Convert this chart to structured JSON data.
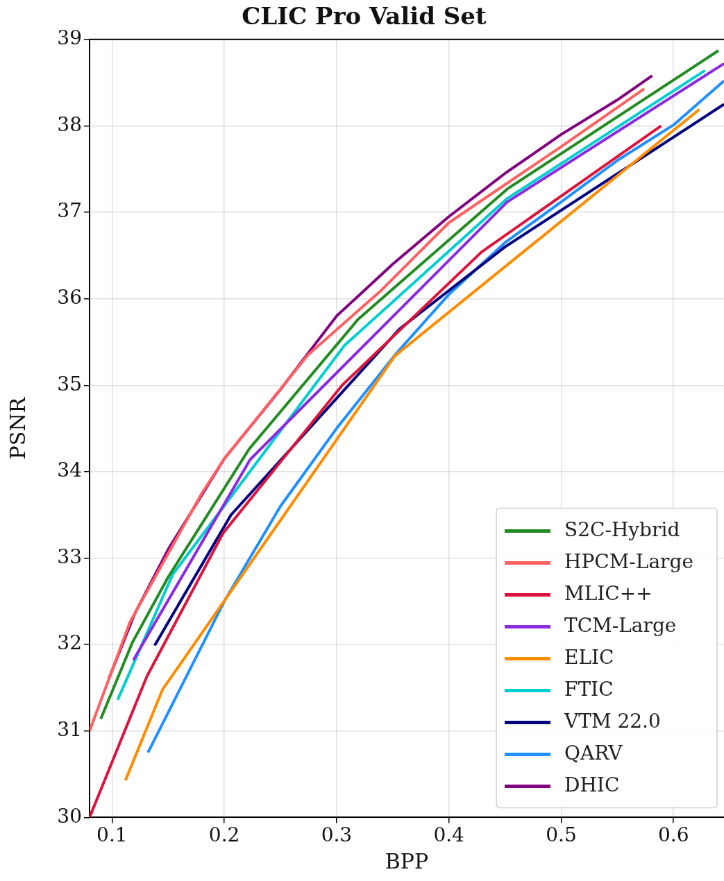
{
  "chart_data": {
    "type": "line",
    "title": "CLIC Pro Valid Set",
    "xlabel": "BPP",
    "ylabel": "PSNR",
    "xlim": [
      0.08,
      0.645
    ],
    "ylim": [
      30,
      39
    ],
    "xticks": [
      {
        "value": 0.1,
        "label": "0.1"
      },
      {
        "value": 0.2,
        "label": "0.2"
      },
      {
        "value": 0.3,
        "label": "0.3"
      },
      {
        "value": 0.4,
        "label": "0.4"
      },
      {
        "value": 0.5,
        "label": "0.5"
      },
      {
        "value": 0.6,
        "label": "0.6"
      }
    ],
    "yticks": [
      30,
      31,
      32,
      33,
      34,
      35,
      36,
      37,
      38,
      39
    ],
    "grid": true,
    "legend": "bottom right",
    "marker": "none",
    "line_style": "solid",
    "series": [
      {
        "name": "S2C-Hybrid",
        "color": "#228b22",
        "x": [
          0.09,
          0.118,
          0.15,
          0.222,
          0.319,
          0.452,
          0.64
        ],
        "values": [
          31.14,
          32.02,
          32.78,
          34.26,
          35.76,
          37.27,
          38.87
        ]
      },
      {
        "name": "HPCM-Large",
        "color": "#ff6161",
        "x": [
          0.08,
          0.116,
          0.18,
          0.2,
          0.2745,
          0.34,
          0.4,
          0.5,
          0.574
        ],
        "values": [
          31.0,
          32.26,
          33.75,
          34.15,
          35.35,
          36.1,
          36.88,
          37.76,
          38.43
        ]
      },
      {
        "name": "MLIC++",
        "color": "#dc143c",
        "x": [
          0.08,
          0.131,
          0.199,
          0.305,
          0.429,
          0.589
        ],
        "values": [
          30.0,
          31.63,
          33.29,
          35.0,
          36.54,
          38.0
        ]
      },
      {
        "name": "TCM-Large",
        "color": "#8a2be2",
        "x": [
          0.119,
          0.223,
          0.452,
          0.645
        ],
        "values": [
          31.82,
          34.14,
          37.12,
          38.72
        ]
      },
      {
        "name": "ELIC",
        "color": "#ff8c00",
        "x": [
          0.112,
          0.145,
          0.352,
          0.623
        ],
        "values": [
          30.43,
          31.48,
          35.34,
          38.19
        ]
      },
      {
        "name": "FTIC",
        "color": "#00ced1",
        "x": [
          0.105,
          0.154,
          0.307,
          0.452,
          0.628
        ],
        "values": [
          31.36,
          32.81,
          35.46,
          37.16,
          38.64
        ]
      },
      {
        "name": "VTM 22.0",
        "color": "#000080",
        "x": [
          0.138,
          0.206,
          0.356,
          0.45,
          0.645
        ],
        "values": [
          31.99,
          33.5,
          35.65,
          36.6,
          38.25
        ]
      },
      {
        "name": "QARV",
        "color": "#1e90ff",
        "x": [
          0.132,
          0.2,
          0.25,
          0.3,
          0.352,
          0.4,
          0.45,
          0.5,
          0.55,
          0.6,
          0.645
        ],
        "values": [
          30.75,
          32.5,
          33.6,
          34.5,
          35.35,
          36.05,
          36.65,
          37.12,
          37.6,
          38.01,
          38.52
        ]
      },
      {
        "name": "DHIC",
        "color": "#800080",
        "x": [
          0.097,
          0.12,
          0.15,
          0.2,
          0.25,
          0.3,
          0.35,
          0.4,
          0.45,
          0.5,
          0.55,
          0.581
        ],
        "values": [
          31.6,
          32.35,
          33.1,
          34.15,
          34.95,
          35.8,
          36.4,
          36.95,
          37.45,
          37.9,
          38.3,
          38.58
        ]
      }
    ]
  }
}
